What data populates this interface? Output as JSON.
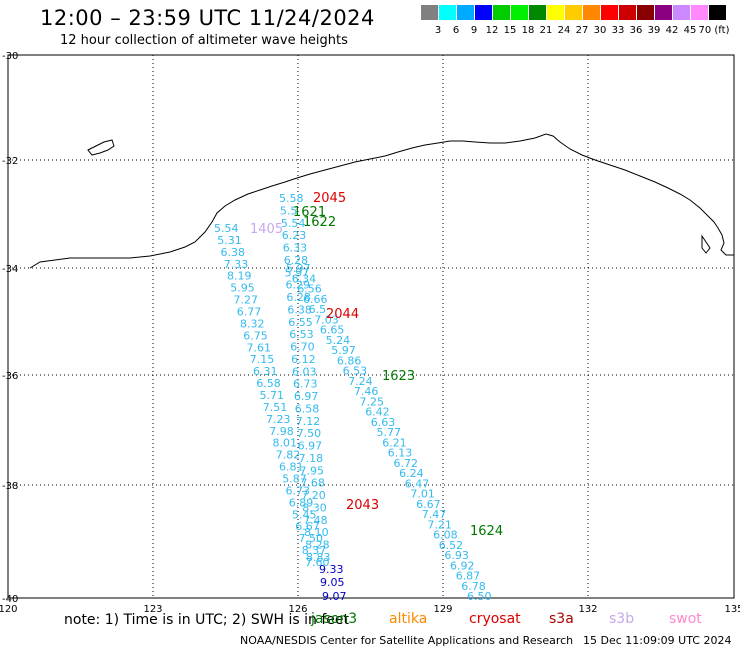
{
  "header": {
    "title": "12:00 – 23:59 UTC 11/24/2024",
    "subtitle": "12 hour collection of altimeter wave heights"
  },
  "colorbar": {
    "colors": [
      "#808080",
      "#00ffff",
      "#00aaff",
      "#0000ff",
      "#00cc00",
      "#00ee00",
      "#008800",
      "#ffff00",
      "#ffcc00",
      "#ff8800",
      "#ff0000",
      "#cc0000",
      "#880000",
      "#8a0080",
      "#cc88ff",
      "#ff88ff",
      "#000000"
    ],
    "labels": [
      "3",
      "6",
      "9",
      "12",
      "15",
      "18",
      "21",
      "24",
      "27",
      "30",
      "33",
      "36",
      "39",
      "42",
      "45",
      "70 (ft)"
    ]
  },
  "axes": {
    "lon_labels": [
      "120",
      "123",
      "126",
      "129",
      "132",
      "135"
    ],
    "lat_labels": [
      "-30",
      "-32",
      "-34",
      "-36",
      "-38",
      "-40"
    ]
  },
  "passes": [
    {
      "label": "2045",
      "color": "#dd0000"
    },
    {
      "label": "1621",
      "color": "#007700"
    },
    {
      "label": "1622",
      "color": "#007700"
    },
    {
      "label": "1405",
      "color": "#c8a8f0"
    },
    {
      "label": "2044",
      "color": "#dd0000"
    },
    {
      "label": "1623",
      "color": "#007700"
    },
    {
      "label": "2043",
      "color": "#dd0000"
    },
    {
      "label": "1624",
      "color": "#007700"
    }
  ],
  "tracks": [
    {
      "color": "#33bbee",
      "values": [
        "5.54",
        "5.31",
        "6.38",
        "7.33",
        "8.19",
        "5.95",
        "7.27",
        "6.77",
        "8.32",
        "6.75",
        "7.61",
        "7.15",
        "6.31",
        "6.58",
        "5.71",
        "7.51",
        "7.23",
        "7.98",
        "8.01",
        "7.82",
        "6.81",
        "5.87",
        "6.73",
        "6.89",
        "5.45",
        "6.67",
        "7.50",
        "8.37",
        "7.60"
      ]
    },
    {
      "color": "#33bbee",
      "values": [
        "5.58",
        "5.5",
        "5.54",
        "6.23",
        "6.33",
        "6.28",
        "5.97",
        "6.29",
        "6.28",
        "6.38",
        "6.55",
        "6.53",
        "6.70",
        "6.12",
        "6.03",
        "6.73",
        "6.97",
        "6.58",
        "7.12",
        "7.50",
        "6.97",
        "7.18",
        "7.95",
        "7.68",
        "7.20",
        "8.30",
        "7.48",
        "8.10",
        "8.28",
        "8.83"
      ]
    },
    {
      "color": "#33bbee",
      "values": [
        "5.97",
        "6.34",
        "6.56",
        "6.66",
        "6.5",
        "7.03",
        "6.65",
        "5.24",
        "5.97",
        "6.86",
        "6.53",
        "7.24",
        "7.46",
        "7.25",
        "6.42",
        "6.63",
        "5.77",
        "6.21",
        "6.13",
        "6.72",
        "6.24",
        "6.47",
        "7.01",
        "6.67",
        "7.47",
        "7.21",
        "6.08",
        "6.52",
        "6.93",
        "6.92",
        "6.87",
        "6.78",
        "6.50"
      ]
    }
  ],
  "high_values": [
    {
      "value": "9.33",
      "color": "#0000cc"
    },
    {
      "value": "9.05",
      "color": "#0000cc"
    },
    {
      "value": "9.07",
      "color": "#0000cc"
    }
  ],
  "note": "note:  1) Time is in UTC;  2) SWH is in feet",
  "legend": [
    {
      "name": "jason3",
      "color": "#007700"
    },
    {
      "name": "altika",
      "color": "#ff8800"
    },
    {
      "name": "cryosat",
      "color": "#dd0000"
    },
    {
      "name": "s3a",
      "color": "#aa0000"
    },
    {
      "name": "s3b",
      "color": "#c8a8f0"
    },
    {
      "name": "swot",
      "color": "#ff88cc"
    }
  ],
  "footer": {
    "credit": "NOAA/NESDIS Center for Satellite Applications and Research",
    "created": "15 Dec 11:09:09 UTC 2024"
  }
}
